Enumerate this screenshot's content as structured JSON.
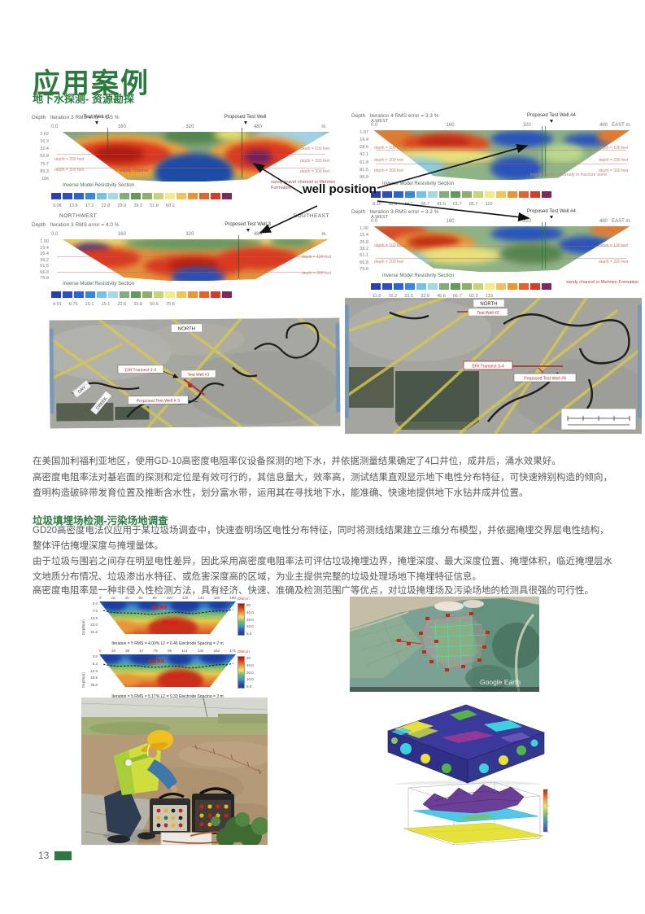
{
  "page": {
    "title": "应用案例",
    "subtitle": "地下水探测- 资源勘探",
    "page_number": "13"
  },
  "palette": {
    "accent": "#2b7a3d",
    "body_text": "#595959",
    "jet16": [
      "#273fb0",
      "#2b4fc4",
      "#2f62d4",
      "#3a86d8",
      "#74c2e4",
      "#a6d8e0",
      "#7fae78",
      "#64985c",
      "#8cb068",
      "#c8d47c",
      "#f0ec8c",
      "#f2c25c",
      "#ee9434",
      "#e4622c",
      "#d83a26",
      "#7c2a5e"
    ]
  },
  "groundwater": {
    "well_position_label": "well position",
    "para1": "在美国加利福利亚地区，使用GD-10高密度电阻率仪设备探测的地下水，并依据测量结果确定了4口井位，成井后，涌水效果好。",
    "para2": "高密度电阻率法对基岩面的探测和定位是有效可行的，其信息量大，效率高，测试结果直观显示地下电性分布特征，可快速辨别构造的倾向，查明构造破碎带发育位置及推断含水性，划分富水带，运用其在寻找地下水，能准确、快速地提供地下水钻井成井位置。",
    "sections": [
      {
        "header": "Depth   Iteration 3 RMS error = 1.5 %",
        "well_label": "Test Well #1",
        "proposed_label": "Proposed Test Well",
        "xticks": [
          "0.0",
          "160",
          "320",
          "480",
          "m."
        ],
        "depths": [
          "2.02",
          "16.3",
          "32.4",
          "52.8",
          "75.7",
          "89.3",
          "106"
        ],
        "note_left1": "depth = 200 feet",
        "note_left2": "depth = 300 feet",
        "note_right1": "depth = 100 feet",
        "note_right2": "depth = 200 feet",
        "note_right3": "depth = 300 feet",
        "annot1": "sandy channel",
        "annot2": "sandy gravel channel in Mehrten Formation",
        "legend_title": "Inverse Model Resistivity Section",
        "legend_values": "9.08      13.8      17.2      22.8      29.8      39.3      51.8      68.2"
      },
      {
        "header": "Depth   Iteration 4 RMS error = 3.3 %",
        "west_label": "A.WEST",
        "east_label": "EAST m.",
        "proposed_label": "Proposed Test Well #4",
        "xticks": [
          "0.0",
          "160",
          "320",
          "480"
        ],
        "depths": [
          "1.87",
          "16.4",
          "28.6",
          "42.1",
          "61.8",
          "81.5",
          "96.9"
        ],
        "note_left1": "depth = 100 feet",
        "note_left2": "depth = 200 feet",
        "note_left3": "depth = 300 feet",
        "note_right1": "depth = 100 feet",
        "note_right2": "depth = 200 feet",
        "note_right3": "depth = 300 feet",
        "annot": "low resistivity anomaly in fracture zone",
        "legend_title": "Inverse Model Resistivity Section",
        "legend_values": "8.25      11.5      16.1      28.7      41.9      61.7      85.7      110"
      },
      {
        "header": "Depth   Iteration 3 RMS error = 4.0 %",
        "nw_label": "NORTHWEST",
        "se_label": "SOUTHEAST",
        "proposed_label": "Proposed Test Well 3",
        "xticks": [
          "0.0",
          "160",
          "320",
          "480",
          "m."
        ],
        "depths": [
          "1.00",
          "15.4",
          "26.4",
          "39.2",
          "51.5",
          "66.8",
          "75.8"
        ],
        "note_right1": "depth = 100 feet",
        "note_right2": "depth = 200 feet",
        "legend_title": "Inverse Model Resistivity Section",
        "legend_values": "4.51      6.75      10.1      15.1      22.6      33.8      50.6      75.6"
      },
      {
        "header": "Depth   Iteration 3 RMS error = 3.2 %",
        "west_label": "A.WEST",
        "east_label": "EAST m.",
        "proposed_label": "Proposed Test Well #4",
        "xticks": [
          "0.0",
          "160",
          "320",
          "480"
        ],
        "depths": [
          "1.00",
          "15.4",
          "26.8",
          "38.2",
          "51.1",
          "66.8",
          "75.8"
        ],
        "note_left1": "depth = 100 feet",
        "note_left2": "depth = 200 feet",
        "note_right1": "depth = 100 feet",
        "note_right2": "depth = 200 feet",
        "annot": "sandy channel in Mehrten Formation",
        "legend_title": "Inverse Model Resistivity Section",
        "legend_values": "11.8      16.2      23.5      32.8      45.6      66.7      92.3      133"
      }
    ],
    "maps": [
      {
        "north": "NORTH",
        "transect": "ERI Transect 1-2",
        "well": "Test Well #1",
        "proposed": "Proposed Test Well # 3",
        "dry": "DRY",
        "creek": "CREEK"
      },
      {
        "north": "NORTH",
        "well": "Test Well #2",
        "transect": "ERI Transect 3-4",
        "proposed": "Proposed Test Well #4"
      }
    ]
  },
  "landfill": {
    "header": "垃圾填埋场检测-污染场地调查",
    "para1": "GD20高密度电法仪应用于某垃圾场调查中，快速查明场区电性分布特征，同时将测线结果建立三维分布模型，并依据掩埋交界层电性结构，整体评估掩埋深度与掩埋量体。",
    "para2": "由于垃圾与围岩之间存在明显电性差异，因此采用高密度电阻率法可评估垃圾掩埋边界，掩埋深度、最大深度位置、掩埋体积，临近掩埋层水文地质分布情况、垃圾渗出水特征、或危害深度高的区域，为业主提供完整的垃圾处理场地下掩埋特征信息。",
    "para3": "高密度电阻率是一种非侵入性检测方法，具有经济、快速、准确及检测范围广等优点，对垃圾掩埋场及污染场地的检测具很强的可行性。",
    "profiles": [
      {
        "ylabel": "Depth(m)",
        "xticks": [
          "0",
          "20",
          "40",
          "60",
          "80",
          "100",
          "120",
          "140",
          "160",
          "180"
        ],
        "yticks": [
          "0.0",
          "7.0",
          "13.8",
          "23.0",
          "31.5"
        ],
        "unit": "Ohm.m",
        "scale_ticks": [
          "80",
          "40.0",
          "20.0",
          "10.0",
          "5.0"
        ],
        "zone_top": "垃圾堆体",
        "zone_bottom": "原状地层",
        "caption": "Iteration = 5    RMS = 4.09%    L2 = 0.46    Electrode Spacing = 2 m"
      },
      {
        "ylabel": "Depth(m)",
        "xticks": [
          "0",
          "19",
          "38",
          "57",
          "76",
          "95",
          "114",
          "133",
          "152",
          "171"
        ],
        "yticks": [
          "0.0",
          "6.2",
          "12.5",
          "18.8",
          "25.0"
        ],
        "unit": "Ohm.m",
        "scale_ticks": [
          "80",
          "40.0",
          "20.0",
          "10.0",
          "5.0"
        ],
        "zone_top": "垃圾堆体",
        "zone_bottom": "原状地层",
        "caption": "Iteration = 5    RMS = 5.17%    L2 = 0.33    Electrode Spacing = 3 m"
      }
    ],
    "google_earth_label": "Google Earth"
  }
}
